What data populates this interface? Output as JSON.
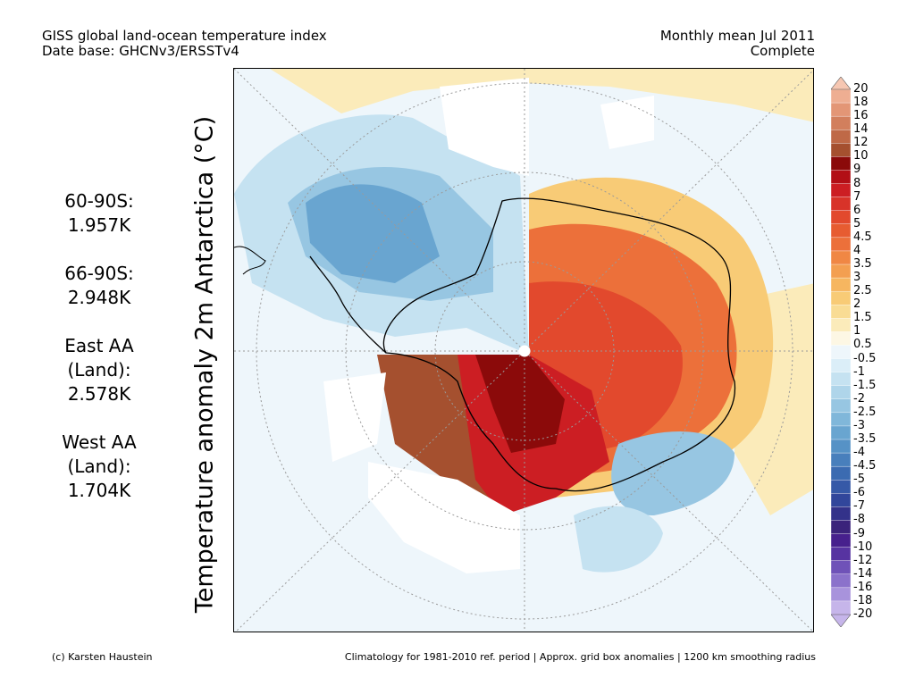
{
  "header": {
    "title_line1": "GISS global land-ocean temperature index",
    "title_line2": "Date base: GHCNv3/ERSSTv4",
    "period_line1": "Monthly mean Jul 2011",
    "period_line2": "Complete"
  },
  "axis_label": "Temperature anomaly 2m Antarctica (°C)",
  "stats": [
    {
      "label": "60-90S:",
      "value": "1.957K"
    },
    {
      "label": "66-90S:",
      "value": "2.948K"
    },
    {
      "label": "East AA (Land):",
      "value": "2.578K"
    },
    {
      "label": "West AA (Land):",
      "value": "1.704K"
    }
  ],
  "colorbar": {
    "levels": [
      "20",
      "18",
      "16",
      "14",
      "12",
      "10",
      "9",
      "8",
      "7",
      "6",
      "5",
      "4.5",
      "4",
      "3.5",
      "3",
      "2.5",
      "2",
      "1.5",
      "1",
      "0.5",
      "-0.5",
      "-1",
      "-1.5",
      "-2",
      "-2.5",
      "-3",
      "-3.5",
      "-4",
      "-4.5",
      "-5",
      "-6",
      "-7",
      "-8",
      "-9",
      "-10",
      "-12",
      "-14",
      "-16",
      "-18",
      "-20"
    ],
    "colors": [
      "#f6c7b2",
      "#eeae92",
      "#e39676",
      "#d27f5d",
      "#bf6947",
      "#a5502f",
      "#8b0a0a",
      "#b20f16",
      "#cc1e23",
      "#d83329",
      "#e2492d",
      "#e75c31",
      "#ec703a",
      "#f08744",
      "#f39f51",
      "#f6b660",
      "#f8cb76",
      "#f9dc94",
      "#fbebba",
      "#fdf7e4",
      "#eef6fb",
      "#dbeef8",
      "#c5e2f1",
      "#afd5ea",
      "#97c6e2",
      "#80b7da",
      "#69a5d0",
      "#5692c6",
      "#487fbc",
      "#3b6bb1",
      "#3659a7",
      "#31469b",
      "#33328a",
      "#3b237b",
      "#47208d",
      "#5733a1",
      "#6f52b8",
      "#8b72cb",
      "#a893dc",
      "#c6b5ea"
    ]
  },
  "footer": {
    "left": "(c) Karsten Haustein",
    "right": "Climatology for 1981-2010 ref. period | Approx. grid box anomalies | 1200 km smoothing radius"
  }
}
